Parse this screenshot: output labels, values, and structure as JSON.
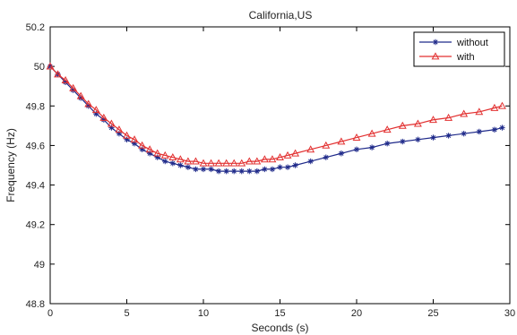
{
  "chart_data": {
    "type": "line",
    "title": "California,US",
    "xlabel": "Seconds (s)",
    "ylabel": "Frequency (Hz)",
    "xlim": [
      0,
      30
    ],
    "ylim": [
      48.8,
      50.2
    ],
    "xticks": [
      0,
      5,
      10,
      15,
      20,
      25,
      30
    ],
    "yticks": [
      48.8,
      49,
      49.2,
      49.4,
      49.6,
      49.8,
      50,
      50.2
    ],
    "xtick_labels": [
      "0",
      "5",
      "10",
      "15",
      "20",
      "25",
      "30"
    ],
    "ytick_labels": [
      "48.8",
      "49",
      "49.2",
      "49.4",
      "49.6",
      "49.8",
      "50",
      "50.2"
    ],
    "legend_position": "top-right",
    "grid": false,
    "series": [
      {
        "name": "without",
        "color": "#1f2a8a",
        "marker": "asterisk",
        "x": [
          0,
          0.5,
          1,
          1.5,
          2,
          2.5,
          3,
          3.5,
          4,
          4.5,
          5,
          5.5,
          6,
          6.5,
          7,
          7.5,
          8,
          8.5,
          9,
          9.5,
          10,
          10.5,
          11,
          11.5,
          12,
          12.5,
          13,
          13.5,
          14,
          14.5,
          15,
          15.5,
          16,
          17,
          18,
          19,
          20,
          21,
          22,
          23,
          24,
          25,
          26,
          27,
          28,
          29,
          29.5
        ],
        "y": [
          50.0,
          49.96,
          49.92,
          49.88,
          49.84,
          49.8,
          49.76,
          49.73,
          49.69,
          49.66,
          49.63,
          49.61,
          49.58,
          49.56,
          49.54,
          49.52,
          49.51,
          49.5,
          49.49,
          49.48,
          49.48,
          49.48,
          49.47,
          49.47,
          49.47,
          49.47,
          49.47,
          49.47,
          49.48,
          49.48,
          49.49,
          49.49,
          49.5,
          49.52,
          49.54,
          49.56,
          49.58,
          49.59,
          49.61,
          49.62,
          49.63,
          49.64,
          49.65,
          49.66,
          49.67,
          49.68,
          49.69
        ]
      },
      {
        "name": "with",
        "color": "#e23030",
        "marker": "triangle",
        "x": [
          0,
          0.5,
          1,
          1.5,
          2,
          2.5,
          3,
          3.5,
          4,
          4.5,
          5,
          5.5,
          6,
          6.5,
          7,
          7.5,
          8,
          8.5,
          9,
          9.5,
          10,
          10.5,
          11,
          11.5,
          12,
          12.5,
          13,
          13.5,
          14,
          14.5,
          15,
          15.5,
          16,
          17,
          18,
          19,
          20,
          21,
          22,
          23,
          24,
          25,
          26,
          27,
          28,
          29,
          29.5
        ],
        "y": [
          50.0,
          49.96,
          49.93,
          49.89,
          49.85,
          49.81,
          49.78,
          49.74,
          49.71,
          49.68,
          49.65,
          49.63,
          49.6,
          49.58,
          49.56,
          49.55,
          49.54,
          49.53,
          49.52,
          49.52,
          49.51,
          49.51,
          49.51,
          49.51,
          49.51,
          49.51,
          49.52,
          49.52,
          49.53,
          49.53,
          49.54,
          49.55,
          49.56,
          49.58,
          49.6,
          49.62,
          49.64,
          49.66,
          49.68,
          49.7,
          49.71,
          49.73,
          49.74,
          49.76,
          49.77,
          49.79,
          49.8
        ]
      }
    ]
  }
}
